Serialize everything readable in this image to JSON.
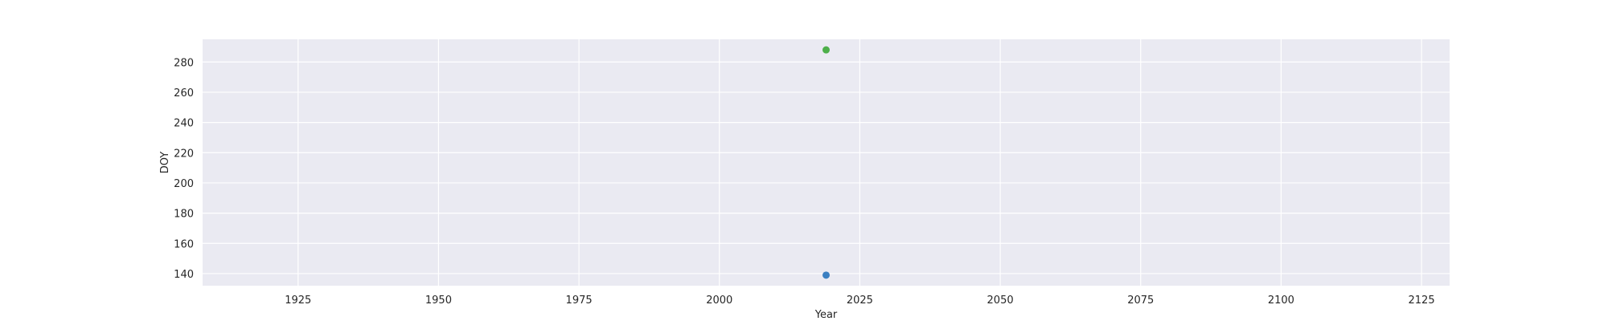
{
  "chart_data": {
    "type": "scatter",
    "title": "",
    "xlabel": "Year",
    "ylabel": "DOY",
    "xlim": [
      1908,
      2130
    ],
    "ylim": [
      132,
      295
    ],
    "xticks": [
      1925,
      1950,
      1975,
      2000,
      2025,
      2050,
      2075,
      2100,
      2125
    ],
    "yticks": [
      140,
      160,
      180,
      200,
      220,
      240,
      260,
      280
    ],
    "grid": true,
    "legend": "none",
    "background_color": "#eaeaf2",
    "grid_color": "#ffffff",
    "points": [
      {
        "x": 2019,
        "y": 139,
        "color": "#3a7fc1"
      },
      {
        "x": 2019,
        "y": 288,
        "color": "#4daf4a"
      }
    ]
  }
}
